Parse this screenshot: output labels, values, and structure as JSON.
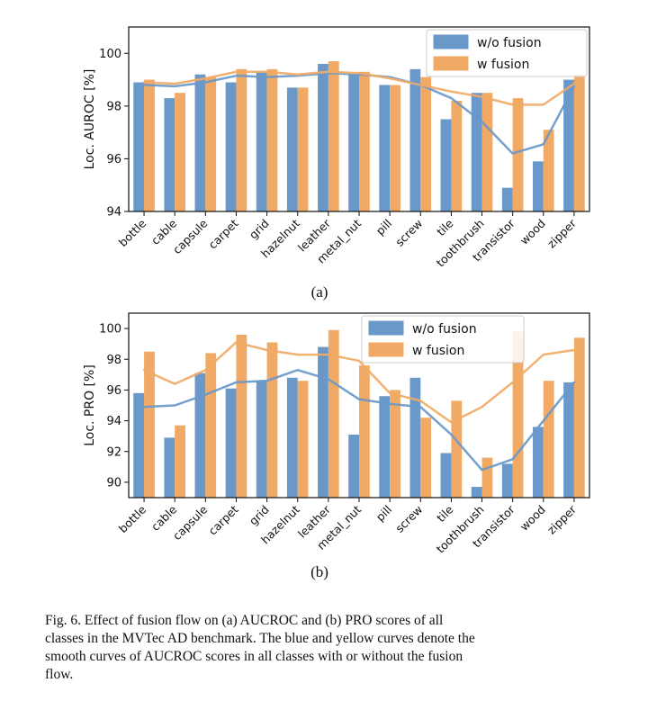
{
  "colors": {
    "without_fusion": "#6a98c9",
    "with_fusion": "#f0aa65",
    "frame": "#111111"
  },
  "chart_data": [
    {
      "type": "bar",
      "ylabel": "Loc. AUROC [%]",
      "ylim": [
        94,
        101
      ],
      "yticks": [
        94,
        96,
        98,
        100
      ],
      "legend_position": "top-right",
      "sublabel": "(a)",
      "categories": [
        "bottle",
        "cable",
        "capsule",
        "carpet",
        "grid",
        "hazelnut",
        "leather",
        "metal_nut",
        "pill",
        "screw",
        "tile",
        "toothbrush",
        "transistor",
        "wood",
        "zipper"
      ],
      "series": [
        {
          "name": "w/o fusion",
          "color": "#6a98c9",
          "values": [
            98.9,
            98.3,
            99.2,
            98.9,
            99.3,
            98.7,
            99.6,
            99.2,
            98.8,
            99.4,
            97.5,
            98.5,
            94.9,
            95.9,
            99.0
          ]
        },
        {
          "name": "w fusion",
          "color": "#f0aa65",
          "values": [
            99.0,
            98.5,
            99.1,
            99.4,
            99.4,
            98.7,
            99.7,
            99.3,
            98.8,
            99.1,
            98.2,
            98.5,
            98.3,
            97.1,
            99.2
          ]
        }
      ],
      "curves": [
        {
          "color": "#6a98c9",
          "values": [
            98.8,
            98.75,
            98.9,
            99.15,
            99.1,
            99.15,
            99.25,
            99.2,
            99.1,
            98.8,
            98.3,
            97.4,
            96.2,
            96.55,
            98.75
          ]
        },
        {
          "color": "#f0aa65",
          "values": [
            98.9,
            98.85,
            99.05,
            99.3,
            99.3,
            99.2,
            99.3,
            99.25,
            99.05,
            98.8,
            98.55,
            98.35,
            98.05,
            98.05,
            98.85
          ]
        }
      ]
    },
    {
      "type": "bar",
      "ylabel": "Loc. PRO [%]",
      "ylim": [
        89,
        101
      ],
      "yticks": [
        90,
        92,
        94,
        96,
        98,
        100
      ],
      "legend_position": "top-center",
      "sublabel": "(b)",
      "categories": [
        "bottle",
        "cable",
        "capsule",
        "carpet",
        "grid",
        "hazelnut",
        "leather",
        "metal_nut",
        "pill",
        "screw",
        "tile",
        "toothbrush",
        "transistor",
        "wood",
        "zipper"
      ],
      "series": [
        {
          "name": "w/o fusion",
          "color": "#6a98c9",
          "values": [
            95.8,
            92.9,
            97.1,
            96.1,
            96.6,
            96.8,
            98.8,
            93.1,
            95.6,
            96.8,
            91.9,
            89.7,
            91.2,
            93.6,
            96.5
          ]
        },
        {
          "name": "w fusion",
          "color": "#f0aa65",
          "values": [
            98.5,
            93.7,
            98.4,
            99.6,
            99.1,
            96.6,
            99.9,
            97.6,
            96.0,
            94.2,
            95.3,
            91.6,
            99.8,
            96.6,
            99.4
          ]
        }
      ],
      "curves": [
        {
          "color": "#6a98c9",
          "values": [
            94.9,
            95.0,
            95.7,
            96.5,
            96.6,
            97.3,
            96.7,
            95.4,
            95.1,
            94.9,
            93.1,
            90.8,
            91.5,
            94.0,
            96.5
          ]
        },
        {
          "color": "#f0aa65",
          "values": [
            97.3,
            96.4,
            97.3,
            99.1,
            98.6,
            98.3,
            98.3,
            97.9,
            95.8,
            95.3,
            93.9,
            94.9,
            96.5,
            98.3,
            98.6
          ]
        }
      ]
    }
  ],
  "caption": {
    "lines": [
      "Fig. 6.    Effect of fusion flow on (a) AUCROC and (b) PRO scores of all",
      "classes in the MVTec AD benchmark. The blue and yellow curves denote the",
      "smooth curves of AUCROC scores in all classes with or without the fusion",
      "flow."
    ]
  }
}
